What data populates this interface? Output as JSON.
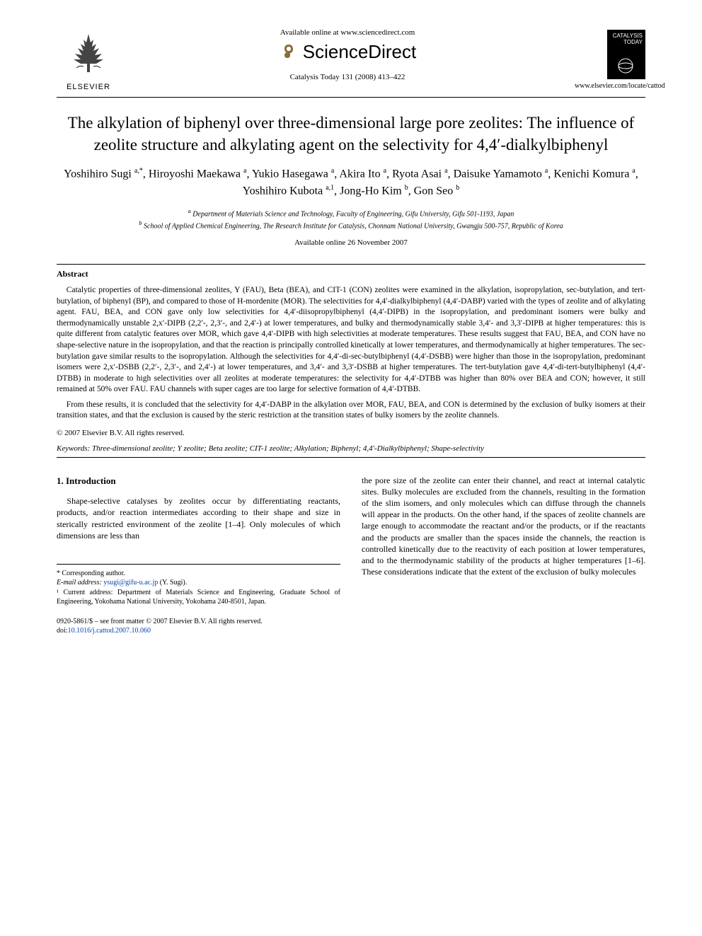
{
  "header": {
    "elsevier": "ELSEVIER",
    "avail_online": "Available online at www.sciencedirect.com",
    "sd_name": "ScienceDirect",
    "journal_ref": "Catalysis Today 131 (2008) 413–422",
    "journal_cover_top": "CATALYSIS TODAY",
    "journal_url": "www.elsevier.com/locate/cattod"
  },
  "title": "The alkylation of biphenyl over three-dimensional large pore zeolites: The influence of zeolite structure and alkylating agent on the selectivity for 4,4′-dialkylbiphenyl",
  "authors_html": "Yoshihiro Sugi <sup>a,*</sup>, Hiroyoshi Maekawa <sup>a</sup>, Yukio Hasegawa <sup>a</sup>, Akira Ito <sup>a</sup>, Ryota Asai <sup>a</sup>, Daisuke Yamamoto <sup>a</sup>, Kenichi Komura <sup>a</sup>, Yoshihiro Kubota <sup>a,1</sup>, Jong-Ho Kim <sup>b</sup>, Gon Seo <sup>b</sup>",
  "affiliations": {
    "a": "Department of Materials Science and Technology, Faculty of Engineering, Gifu University, Gifu 501-1193, Japan",
    "b": "School of Applied Chemical Engineering, The Research Institute for Catalysis, Chonnam National University, Gwangju 500-757, Republic of Korea"
  },
  "avail_date": "Available online 26 November 2007",
  "abstract_heading": "Abstract",
  "abstract_paragraphs": [
    "Catalytic properties of three-dimensional zeolites, Y (FAU), Beta (BEA), and CIT-1 (CON) zeolites were examined in the alkylation, isopropylation, sec-butylation, and tert-butylation, of biphenyl (BP), and compared to those of H-mordenite (MOR). The selectivities for 4,4′-dialkylbiphenyl (4,4′-DABP) varied with the types of zeolite and of alkylating agent. FAU, BEA, and CON gave only low selectivities for 4,4′-diisopropylbiphenyl (4,4′-DIPB) in the isopropylation, and predominant isomers were bulky and thermodynamically unstable 2,x′-DIPB (2,2′-, 2,3′-, and 2,4′-) at lower temperatures, and bulky and thermodynamically stable 3,4′- and 3,3′-DIPB at higher temperatures: this is quite different from catalytic features over MOR, which gave 4,4′-DIPB with high selectivities at moderate temperatures. These results suggest that FAU, BEA, and CON have no shape-selective nature in the isopropylation, and that the reaction is principally controlled kinetically at lower temperatures, and thermodynamically at higher temperatures. The sec-butylation gave similar results to the isopropylation. Although the selectivities for 4,4′-di-sec-butylbiphenyl (4,4′-DSBB) were higher than those in the isopropylation, predominant isomers were 2,x′-DSBB (2,2′-, 2,3′-, and 2,4′-) at lower temperatures, and 3,4′- and 3,3′-DSBB at higher temperatures. The tert-butylation gave 4,4′-di-tert-butylbiphenyl (4,4′-DTBB) in moderate to high selectivities over all zeolites at moderate temperatures: the selectivity for 4,4′-DTBB was higher than 80% over BEA and CON; however, it still remained at 50% over FAU. FAU channels with super cages are too large for selective formation of 4,4′-DTBB.",
    "From these results, it is concluded that the selectivity for 4,4′-DABP in the alkylation over MOR, FAU, BEA, and CON is determined by the exclusion of bulky isomers at their transition states, and that the exclusion is caused by the steric restriction at the transition states of bulky isomers by the zeolite channels."
  ],
  "copyright": "© 2007 Elsevier B.V. All rights reserved.",
  "keywords_label": "Keywords:",
  "keywords": "Three-dimensional zeolite; Y zeolite; Beta zeolite; CIT-1 zeolite; Alkylation; Biphenyl; 4,4′-Dialkylbiphenyl; Shape-selectivity",
  "intro_heading": "1. Introduction",
  "intro_left": "Shape-selective catalyses by zeolites occur by differentiating reactants, products, and/or reaction intermediates according to their shape and size in sterically restricted environment of the zeolite [1–4]. Only molecules of which dimensions are less than",
  "intro_right": "the pore size of the zeolite can enter their channel, and react at internal catalytic sites. Bulky molecules are excluded from the channels, resulting in the formation of the slim isomers, and only molecules which can diffuse through the channels will appear in the products. On the other hand, if the spaces of zeolite channels are large enough to accommodate the reactant and/or the products, or if the reactants and the products are smaller than the spaces inside the channels, the reaction is controlled kinetically due to the reactivity of each position at lower temperatures, and to the thermodynamic stability of the products at higher temperatures [1–6]. These considerations indicate that the extent of the exclusion of bulky molecules",
  "footnotes": {
    "corr": "* Corresponding author.",
    "email_label": "E-mail address:",
    "email": "ysugi@gifu-u.ac.jp",
    "email_who": "(Y. Sugi).",
    "note1": "¹ Current address: Department of Materials Science and Engineering, Graduate School of Engineering, Yokohama National University, Yokohama 240-8501, Japan."
  },
  "footer": {
    "left": "0920-5861/$ – see front matter © 2007 Elsevier B.V. All rights reserved.",
    "doi": "doi:10.1016/j.cattod.2007.10.060"
  },
  "colors": {
    "text": "#000000",
    "link": "#0645ad",
    "bg": "#ffffff"
  }
}
